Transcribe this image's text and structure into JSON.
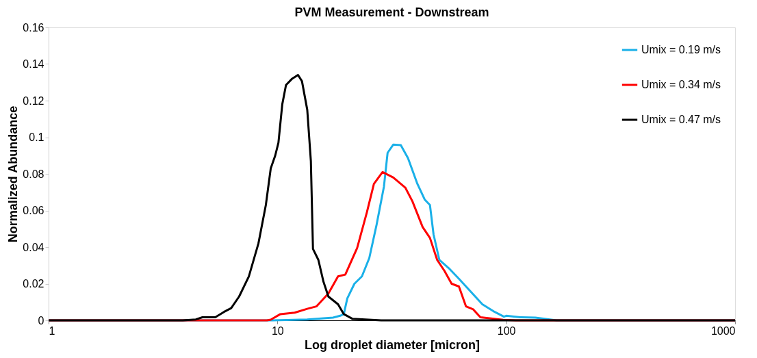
{
  "chart_data": {
    "type": "line",
    "title": "PVM Measurement  -  Downstream",
    "xlabel": "Log droplet diameter [micron]",
    "ylabel": "Normalized Abundance",
    "log": "x",
    "xlim": [
      1,
      1000
    ],
    "xticks": [
      1,
      10,
      100,
      1000
    ],
    "ylim": [
      0,
      0.16
    ],
    "yticks": [
      0,
      0.02,
      0.04,
      0.06,
      0.08,
      0.1,
      0.12,
      0.14,
      0.16
    ],
    "grid": false,
    "legend": "top right",
    "marker": "none",
    "line_style": "solid",
    "series": [
      {
        "name": "Umix = 0.19 m/s",
        "color": "#1ab0e8",
        "x": [
          1,
          9.5,
          13.5,
          17.5,
          18.8,
          19.5,
          20.2,
          21.7,
          23.4,
          25.2,
          27.1,
          29.2,
          30.3,
          32.1,
          34.6,
          37.2,
          40.9,
          44,
          46.4,
          48.1,
          51,
          56.1,
          62.1,
          69.6,
          78.6,
          89,
          97.7,
          100,
          115,
          134,
          155,
          166,
          1000
        ],
        "values": [
          0,
          0,
          0.0005,
          0.0015,
          0.0025,
          0.0034,
          0.012,
          0.02,
          0.024,
          0.034,
          0.052,
          0.073,
          0.0915,
          0.096,
          0.0957,
          0.0886,
          0.0745,
          0.066,
          0.063,
          0.047,
          0.033,
          0.0285,
          0.0227,
          0.016,
          0.0088,
          0.0046,
          0.002,
          0.0025,
          0.0017,
          0.0015,
          0.0005,
          0,
          0
        ]
      },
      {
        "name": "Umix = 0.34 m/s",
        "color": "#ff0000",
        "x": [
          1,
          9.0,
          9.35,
          10.3,
          11.9,
          13.5,
          14.8,
          16.7,
          18.4,
          19.8,
          22.3,
          24.6,
          26.4,
          28.8,
          32.1,
          36.2,
          38.9,
          43.1,
          46.4,
          49.9,
          53.7,
          57.7,
          62.1,
          66.7,
          71.7,
          77.1,
          97,
          110,
          1000
        ],
        "values": [
          0,
          0,
          0.0004,
          0.0034,
          0.0042,
          0.0063,
          0.0076,
          0.0147,
          0.024,
          0.025,
          0.0395,
          0.059,
          0.0745,
          0.081,
          0.078,
          0.0725,
          0.065,
          0.051,
          0.045,
          0.033,
          0.027,
          0.02,
          0.0185,
          0.0076,
          0.006,
          0.0017,
          0.0003,
          0,
          0
        ]
      },
      {
        "name": "Umix = 0.47 m/s",
        "color": "#000000",
        "x": [
          1,
          3.86,
          4.4,
          4.7,
          5.35,
          5.84,
          6.28,
          6.8,
          7.5,
          8.26,
          8.9,
          9.35,
          9.78,
          10.1,
          10.5,
          10.9,
          11.6,
          12.3,
          12.8,
          13.5,
          14.0,
          14.3,
          15.1,
          15.9,
          16.7,
          18.4,
          19.5,
          21.3,
          28.4,
          1000
        ],
        "values": [
          0,
          0,
          0.0005,
          0.0017,
          0.0017,
          0.0046,
          0.0067,
          0.013,
          0.024,
          0.042,
          0.063,
          0.083,
          0.09,
          0.097,
          0.118,
          0.1285,
          0.132,
          0.134,
          0.1306,
          0.115,
          0.087,
          0.039,
          0.033,
          0.021,
          0.013,
          0.0088,
          0.0034,
          0.0008,
          0,
          0
        ]
      }
    ]
  }
}
